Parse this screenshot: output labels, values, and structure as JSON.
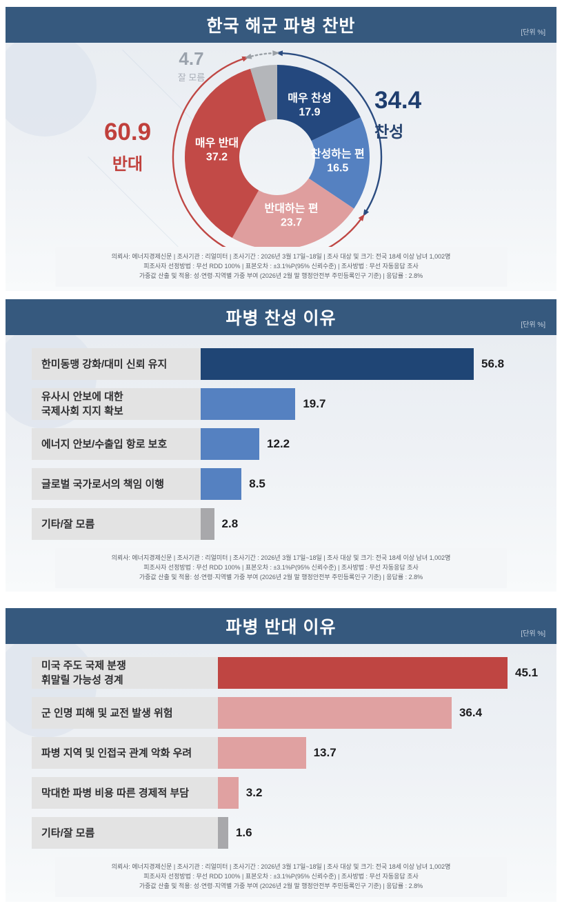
{
  "colors": {
    "header_bg": "#36597e",
    "strong_approve": "#24487e",
    "approve_blue": "#5581c1",
    "oppose_pink": "#df9e9e",
    "strong_oppose": "#c24a47",
    "unknown_gray": "#b4b6ba",
    "bar_navy": "#1f4575",
    "bar_blue": "#5581c1",
    "bar_red": "#bf4542",
    "bar_pink": "#e0a1a1",
    "bar_gray": "#a8a8ab",
    "approve_text": "#1e3d6e",
    "oppose_text": "#c0403c",
    "unknown_text": "#9aa2ac"
  },
  "survey_footnote": {
    "line1": "의뢰사: 에너지경제신문 | 조사기관 : 리얼미터 | 조사기간 : 2026년 3월 17일~18일 | 조사 대상 및 크기: 전국 18세 이상 남녀 1,002명",
    "line2": "피조사자 선정방법 : 무선 RDD 100% | 표본오차 : ±3.1%P(95% 신뢰수준) | 조사방법 : 무선 자동응답 조사",
    "line3": "가중값 산출 및 적용: 성·연령·지역별 가중 부여 (2026년 2월 말 행정안전부 주민등록인구 기준) | 응답률 : 2.8%"
  },
  "chart_data": [
    {
      "type": "pie",
      "subtype": "donut",
      "title": "한국 해군 파병 찬반",
      "unit": "[단위 %]",
      "segments": [
        {
          "label": "매우 찬성",
          "value": 17.9,
          "color": "#24487e"
        },
        {
          "label": "찬성하는 편",
          "value": 16.5,
          "color": "#5581c1"
        },
        {
          "label": "반대하는 편",
          "value": 23.7,
          "color": "#df9e9e"
        },
        {
          "label": "매우 반대",
          "value": 37.2,
          "color": "#c24a47"
        },
        {
          "label": "잘 모름",
          "value": 4.7,
          "color": "#b4b6ba"
        }
      ],
      "callouts": {
        "approve": {
          "value": 34.4,
          "label": "찬성"
        },
        "oppose": {
          "value": 60.9,
          "label": "반대"
        },
        "unknown": {
          "value": 4.7,
          "label": "잘 모름"
        }
      }
    },
    {
      "type": "bar",
      "orientation": "horizontal",
      "title": "파병 찬성 이유",
      "unit": "[단위 %]",
      "categories": [
        "한미동맹 강화/대미 신뢰 유지",
        "유사시 안보에 대한 국제사회 지지 확보",
        "에너지 안보/수출입 항로 보호",
        "글로벌 국가로서의 책임 이행",
        "기타/잘 모름"
      ],
      "values": [
        56.8,
        19.7,
        12.2,
        8.5,
        2.8
      ],
      "bars": [
        {
          "label_lines": [
            "한미동맹 강화/대미 신뢰 유지"
          ],
          "value": 56.8,
          "color": "#1f4575"
        },
        {
          "label_lines": [
            "유사시 안보에 대한",
            "국제사회 지지 확보"
          ],
          "value": 19.7,
          "color": "#5581c1"
        },
        {
          "label_lines": [
            "에너지 안보/수출입 항로 보호"
          ],
          "value": 12.2,
          "color": "#5581c1"
        },
        {
          "label_lines": [
            "글로벌 국가로서의 책임 이행"
          ],
          "value": 8.5,
          "color": "#5581c1"
        },
        {
          "label_lines": [
            "기타/잘 모름"
          ],
          "value": 2.8,
          "color": "#a8a8ab"
        }
      ]
    },
    {
      "type": "bar",
      "orientation": "horizontal",
      "title": "파병 반대 이유",
      "unit": "[단위 %]",
      "categories": [
        "미국 주도 국제 분쟁 휘말릴 가능성 경계",
        "군 인명 피해 및 교전 발생 위험",
        "파병 지역 및 인접국 관계 악화 우려",
        "막대한 파병 비용 따른 경제적 부담",
        "기타/잘 모름"
      ],
      "values": [
        45.1,
        36.4,
        13.7,
        3.2,
        1.6
      ],
      "bars": [
        {
          "label_lines": [
            "미국 주도 국제 분쟁",
            "휘말릴 가능성 경계"
          ],
          "value": 45.1,
          "color": "#bf4542"
        },
        {
          "label_lines": [
            "군 인명 피해 및 교전 발생 위험"
          ],
          "value": 36.4,
          "color": "#e0a1a1"
        },
        {
          "label_lines": [
            "파병 지역 및 인접국 관계 악화 우려"
          ],
          "value": 13.7,
          "color": "#e0a1a1"
        },
        {
          "label_lines": [
            "막대한 파병 비용 따른 경제적 부담"
          ],
          "value": 3.2,
          "color": "#e0a1a1"
        },
        {
          "label_lines": [
            "기타/잘 모름"
          ],
          "value": 1.6,
          "color": "#a8a8ab"
        }
      ]
    }
  ]
}
